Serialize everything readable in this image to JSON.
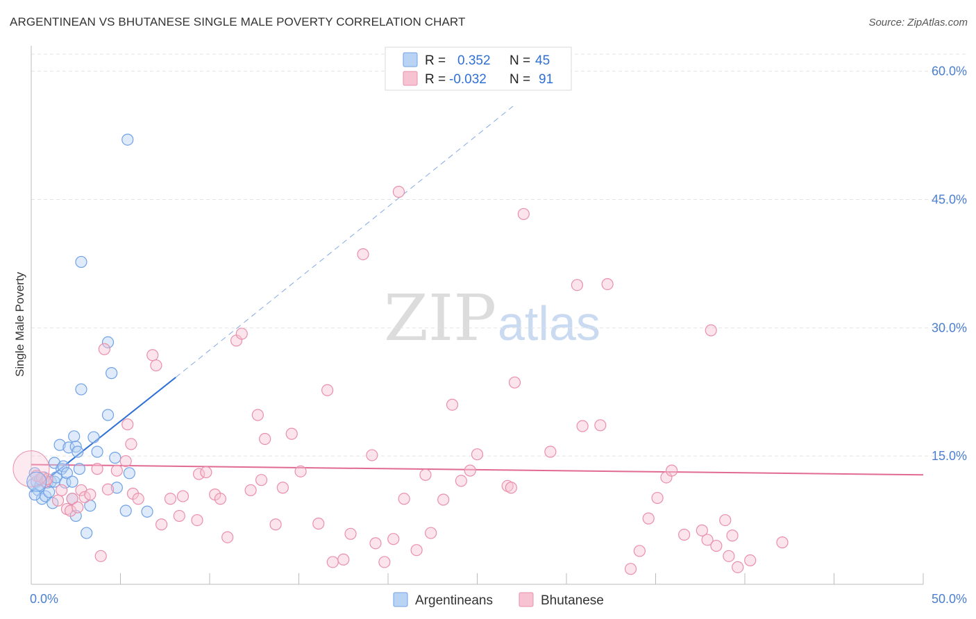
{
  "title": "ARGENTINEAN VS BHUTANESE SINGLE MALE POVERTY CORRELATION CHART",
  "source": "Source: ZipAtlas.com",
  "watermark": {
    "zip": "ZIP",
    "atlas": "atlas"
  },
  "colors": {
    "argentineans": "#6fa1e6",
    "argentineans_fill": "#b9d3f5",
    "argentineans_line": "#2e6fd6",
    "bhutanese": "#ea8fab",
    "bhutanese_fill": "#f7c3d3",
    "bhutanese_line": "#e06a94",
    "tick_text": "#4a7fd0",
    "grid": "#e3e3e3"
  },
  "legend_top": {
    "rows": [
      {
        "series": "argentineans",
        "r_label": "R =",
        "r_value": "0.352",
        "n_label": "N =",
        "n_value": "45"
      },
      {
        "series": "bhutanese",
        "r_label": "R =",
        "r_value": "-0.032",
        "n_label": "N =",
        "n_value": "91"
      }
    ]
  },
  "legend_bottom": [
    "Argentineans",
    "Bhutanese"
  ],
  "chart_data": {
    "type": "scatter",
    "title": "ARGENTINEAN VS BHUTANESE SINGLE MALE POVERTY CORRELATION CHART",
    "xlabel": "",
    "ylabel": "Single Male Poverty",
    "xlim": [
      0,
      50
    ],
    "ylim": [
      0,
      62
    ],
    "x_tick_labels": [
      "0.0%",
      "50.0%"
    ],
    "y_ticks": [
      15,
      30,
      45,
      60
    ],
    "y_tick_labels": [
      "15.0%",
      "30.0%",
      "45.0%",
      "60.0%"
    ],
    "grid": true,
    "series": [
      {
        "name": "Argentineans",
        "key": "argentineans",
        "R": 0.352,
        "N": 45,
        "trend": {
          "x0": 0,
          "y0": 10.8,
          "x1": 8.1,
          "y1": 24.2,
          "dashed_to_x": 27,
          "dashed_to_y": 55.9
        },
        "points": [
          [
            0.1,
            11.7
          ],
          [
            0.2,
            13.0
          ],
          [
            0.3,
            12.0
          ],
          [
            0.4,
            11.0
          ],
          [
            0.5,
            11.5
          ],
          [
            0.5,
            12.3
          ],
          [
            0.6,
            10.0
          ],
          [
            0.7,
            12.5
          ],
          [
            0.8,
            10.3
          ],
          [
            0.9,
            11.9
          ],
          [
            1.0,
            10.8
          ],
          [
            1.1,
            12.0
          ],
          [
            1.2,
            9.5
          ],
          [
            1.3,
            12.0
          ],
          [
            1.3,
            14.2
          ],
          [
            1.4,
            12.5
          ],
          [
            1.6,
            16.3
          ],
          [
            1.7,
            13.5
          ],
          [
            1.8,
            13.8
          ],
          [
            1.9,
            11.9
          ],
          [
            2.0,
            13.0
          ],
          [
            2.1,
            16.0
          ],
          [
            2.3,
            12.0
          ],
          [
            2.3,
            10.0
          ],
          [
            2.4,
            17.3
          ],
          [
            2.5,
            16.1
          ],
          [
            2.5,
            8.0
          ],
          [
            2.6,
            15.5
          ],
          [
            2.7,
            13.5
          ],
          [
            2.8,
            22.8
          ],
          [
            2.8,
            37.7
          ],
          [
            3.1,
            6.0
          ],
          [
            3.3,
            9.2
          ],
          [
            3.5,
            17.2
          ],
          [
            3.7,
            15.5
          ],
          [
            4.3,
            19.8
          ],
          [
            4.3,
            28.3
          ],
          [
            4.5,
            24.7
          ],
          [
            4.7,
            14.8
          ],
          [
            4.8,
            11.3
          ],
          [
            5.3,
            8.6
          ],
          [
            5.4,
            52.0
          ],
          [
            5.5,
            13.0
          ],
          [
            6.5,
            8.5
          ],
          [
            0.2,
            10.5
          ]
        ]
      },
      {
        "name": "Bhutanese",
        "key": "bhutanese",
        "R": -0.032,
        "N": 91,
        "trend": {
          "x0": 0,
          "y0": 14.0,
          "x1": 50,
          "y1": 12.8
        },
        "points": [
          [
            0.3,
            12.7
          ],
          [
            0.6,
            12.5
          ],
          [
            0.8,
            12.0
          ],
          [
            0.9,
            12.3
          ],
          [
            1.5,
            9.8
          ],
          [
            1.7,
            11.0
          ],
          [
            2.0,
            8.8
          ],
          [
            2.2,
            8.6
          ],
          [
            2.3,
            10.0
          ],
          [
            2.6,
            9.0
          ],
          [
            2.8,
            11.0
          ],
          [
            3.0,
            10.2
          ],
          [
            3.3,
            10.5
          ],
          [
            3.7,
            13.5
          ],
          [
            3.9,
            3.3
          ],
          [
            4.1,
            27.5
          ],
          [
            4.3,
            11.1
          ],
          [
            4.8,
            13.3
          ],
          [
            5.3,
            14.4
          ],
          [
            5.4,
            18.7
          ],
          [
            5.6,
            16.4
          ],
          [
            5.7,
            10.6
          ],
          [
            6.0,
            10.0
          ],
          [
            6.8,
            26.8
          ],
          [
            7.0,
            25.6
          ],
          [
            7.3,
            7.0
          ],
          [
            7.8,
            10.0
          ],
          [
            8.3,
            8.0
          ],
          [
            8.5,
            10.3
          ],
          [
            9.3,
            7.5
          ],
          [
            9.4,
            12.9
          ],
          [
            9.8,
            13.1
          ],
          [
            10.3,
            10.5
          ],
          [
            10.6,
            10.0
          ],
          [
            11.0,
            5.5
          ],
          [
            11.5,
            28.5
          ],
          [
            11.8,
            29.3
          ],
          [
            12.3,
            11.0
          ],
          [
            12.7,
            19.8
          ],
          [
            12.9,
            12.2
          ],
          [
            13.1,
            17.0
          ],
          [
            13.7,
            7.0
          ],
          [
            14.1,
            11.3
          ],
          [
            14.6,
            17.6
          ],
          [
            15.1,
            13.2
          ],
          [
            16.1,
            7.1
          ],
          [
            16.6,
            22.7
          ],
          [
            16.9,
            2.6
          ],
          [
            17.5,
            2.9
          ],
          [
            17.9,
            5.9
          ],
          [
            18.6,
            38.6
          ],
          [
            19.1,
            15.1
          ],
          [
            19.3,
            4.8
          ],
          [
            19.8,
            2.6
          ],
          [
            20.3,
            5.3
          ],
          [
            20.6,
            45.9
          ],
          [
            20.9,
            10.0
          ],
          [
            21.6,
            4.0
          ],
          [
            22.1,
            12.8
          ],
          [
            22.4,
            6.0
          ],
          [
            23.1,
            9.9
          ],
          [
            23.6,
            21.0
          ],
          [
            24.1,
            12.1
          ],
          [
            24.6,
            13.3
          ],
          [
            25.0,
            15.2
          ],
          [
            26.7,
            11.5
          ],
          [
            26.9,
            11.3
          ],
          [
            27.1,
            23.6
          ],
          [
            27.6,
            43.3
          ],
          [
            29.1,
            15.5
          ],
          [
            30.6,
            35.0
          ],
          [
            30.9,
            18.5
          ],
          [
            31.9,
            18.6
          ],
          [
            32.3,
            35.1
          ],
          [
            33.6,
            1.8
          ],
          [
            34.1,
            3.9
          ],
          [
            34.6,
            7.7
          ],
          [
            35.1,
            10.1
          ],
          [
            35.6,
            12.5
          ],
          [
            35.9,
            13.3
          ],
          [
            36.6,
            5.8
          ],
          [
            37.6,
            6.3
          ],
          [
            37.9,
            5.2
          ],
          [
            38.1,
            29.7
          ],
          [
            38.4,
            4.5
          ],
          [
            38.9,
            7.5
          ],
          [
            39.1,
            3.3
          ],
          [
            39.3,
            5.7
          ],
          [
            39.6,
            2.0
          ],
          [
            40.3,
            2.8
          ],
          [
            42.1,
            4.9
          ]
        ]
      }
    ]
  }
}
